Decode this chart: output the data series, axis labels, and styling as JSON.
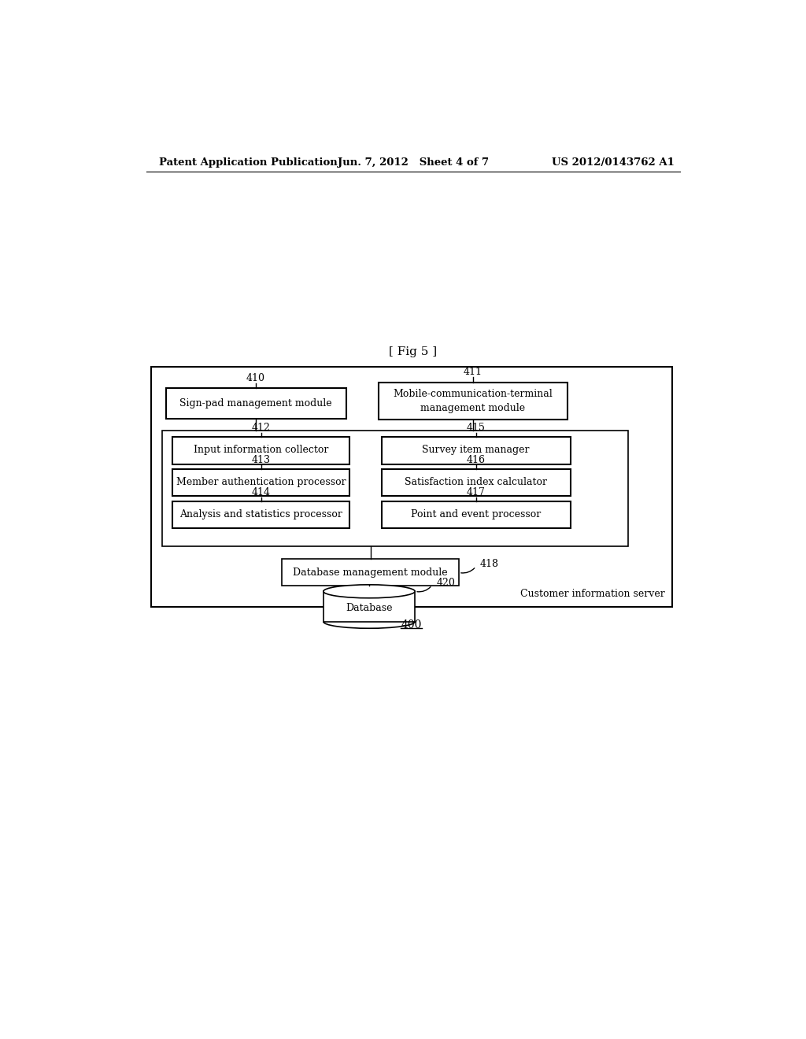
{
  "bg_color": "#ffffff",
  "header_left": "Patent Application Publication",
  "header_center": "Jun. 7, 2012   Sheet 4 of 7",
  "header_right": "US 2012/0143762 A1",
  "fig_label": "[ Fig 5 ]",
  "outer_box_label": "400",
  "server_text": "Customer information server",
  "top_left_label": "410",
  "top_left_box_text": "Sign-pad management module",
  "top_right_label": "411",
  "top_right_box_text": "Mobile-communication-terminal\nmanagement module",
  "left_boxes": [
    {
      "label": "412",
      "text": "Input information collector"
    },
    {
      "label": "413",
      "text": "Member authentication processor"
    },
    {
      "label": "414",
      "text": "Analysis and statistics processor"
    }
  ],
  "right_boxes": [
    {
      "label": "415",
      "text": "Survey item manager"
    },
    {
      "label": "416",
      "text": "Satisfaction index calculator"
    },
    {
      "label": "417",
      "text": "Point and event processor"
    }
  ],
  "db_mgmt_label": "418",
  "db_mgmt_text": "Database management module",
  "db_label": "420",
  "db_text": "Database"
}
